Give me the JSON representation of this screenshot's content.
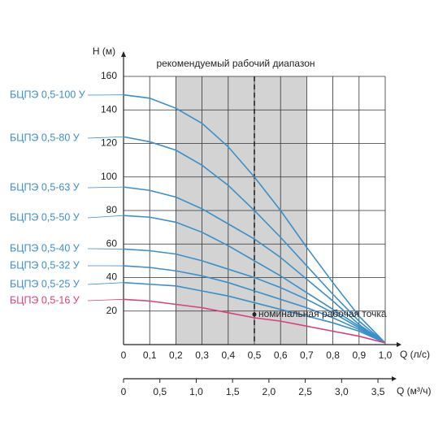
{
  "chart_data": {
    "type": "line",
    "title": "рекомендуемый рабочий диапазон",
    "y_label": "H (м)",
    "x_label": "Q (л/с)",
    "x2_label": "Q (м³/ч)",
    "x": [
      0,
      0.1,
      0.2,
      0.3,
      0.4,
      0.5,
      0.6,
      0.7,
      0.8,
      0.9,
      1.0
    ],
    "xlim": [
      0,
      1.0
    ],
    "xticks": [
      0,
      {
        "value": 0.1,
        "label": "0,1"
      },
      {
        "value": 0.2,
        "label": "0,2"
      },
      {
        "value": 0.3,
        "label": "0,3"
      },
      {
        "value": 0.4,
        "label": "0,4"
      },
      {
        "value": 0.5,
        "label": "0,5"
      },
      {
        "value": 0.6,
        "label": "0,6"
      },
      {
        "value": 0.7,
        "label": "0,7"
      },
      {
        "value": 0.8,
        "label": "0,8"
      },
      {
        "value": 0.9,
        "label": "0,9"
      },
      {
        "value": 1.0,
        "label": "1,0"
      }
    ],
    "ylim": [
      0,
      160
    ],
    "yticks": [
      20,
      40,
      60,
      80,
      100,
      120,
      140,
      160
    ],
    "x2lim": [
      0,
      3.6
    ],
    "x2ticks": [
      0,
      {
        "value": 0.5,
        "label": "0,5"
      },
      {
        "value": 1.0,
        "label": "1,0"
      },
      {
        "value": 1.5,
        "label": "1,5"
      },
      {
        "value": 2.0,
        "label": "2,0"
      },
      {
        "value": 2.5,
        "label": "2,5"
      },
      {
        "value": 3.0,
        "label": "3,0"
      },
      {
        "value": 3.5,
        "label": "3,5"
      }
    ],
    "grid": true,
    "range": [
      0.2,
      0.7
    ],
    "nominal_q": 0.5,
    "annotations": [
      {
        "text": "номинальная рабочая точка",
        "x": 0.5,
        "y": 18
      }
    ],
    "series": [
      {
        "name": "БЦПЭ 0,5-100 У",
        "color": "#3b8fca",
        "values": [
          149,
          147,
          141,
          132,
          118,
          100,
          80,
          58,
          37,
          17,
          1
        ]
      },
      {
        "name": "БЦПЭ 0,5-80 У",
        "color": "#3b8fca",
        "values": [
          124,
          121,
          116,
          107,
          95,
          80,
          64,
          47,
          30,
          14,
          1
        ]
      },
      {
        "name": "БЦПЭ 0,5-63 У",
        "color": "#3b8fca",
        "values": [
          94,
          92,
          88,
          81,
          72,
          63,
          52,
          39,
          26,
          12,
          1
        ]
      },
      {
        "name": "БЦПЭ 0,5-50 У",
        "color": "#3b8fca",
        "values": [
          77,
          76,
          73,
          67,
          59,
          50,
          41,
          31,
          21,
          11,
          1
        ]
      },
      {
        "name": "БЦПЭ 0,5-40 У",
        "color": "#3b8fca",
        "values": [
          57,
          56,
          54,
          50,
          45,
          40,
          34,
          27,
          19,
          10,
          1
        ]
      },
      {
        "name": "БЦПЭ 0,5-32 У",
        "color": "#3b8fca",
        "values": [
          47,
          46,
          44,
          41,
          37,
          32,
          27,
          22,
          16,
          9,
          1
        ]
      },
      {
        "name": "БЦПЭ 0,5-25 У",
        "color": "#3b8fca",
        "values": [
          37,
          36,
          35,
          32,
          29,
          25,
          21,
          17,
          13,
          8,
          1
        ]
      },
      {
        "name": "БЦПЭ 0,5-16 У",
        "color": "#d8407e",
        "values": [
          27,
          26,
          24,
          22,
          19,
          16,
          14,
          11,
          8,
          5,
          1
        ]
      }
    ]
  }
}
